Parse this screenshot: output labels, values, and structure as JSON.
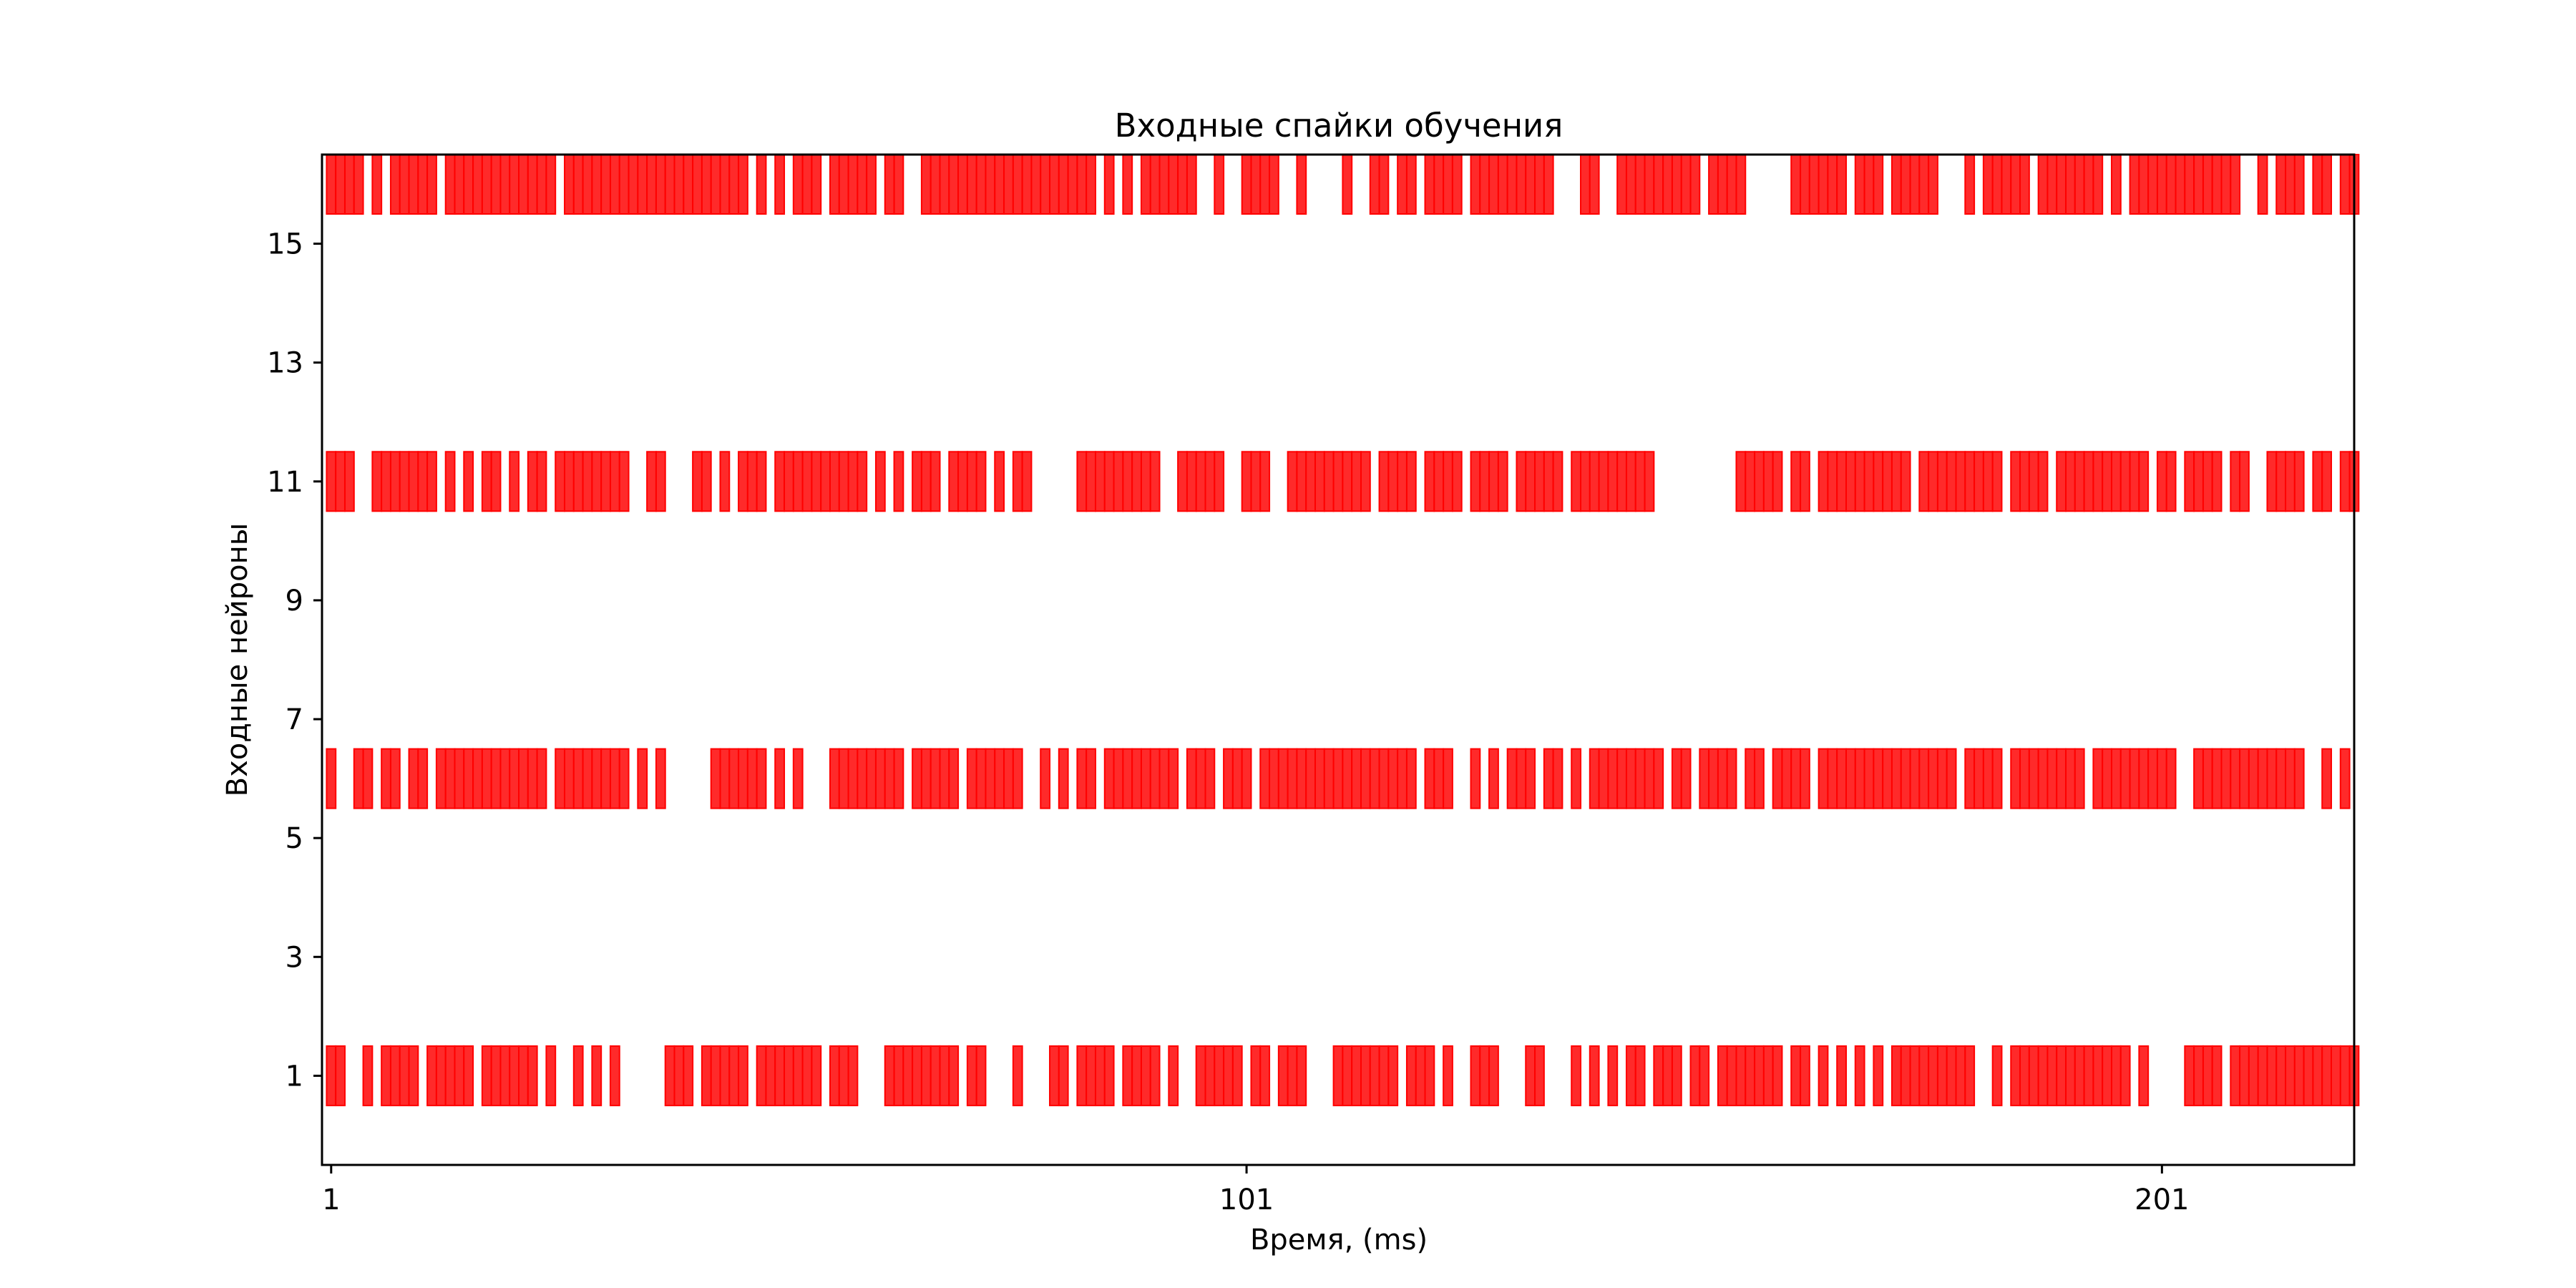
{
  "chart_data": {
    "type": "raster",
    "title": "Входные спайки обучения",
    "xlabel": "Время, (ms)",
    "ylabel": "Входные нейроны",
    "xticks": [
      1,
      101,
      201
    ],
    "xtick_labels": [
      "1",
      "101",
      "201"
    ],
    "yticks": [
      1,
      3,
      5,
      7,
      9,
      11,
      13,
      15
    ],
    "ytick_labels": [
      "1",
      "3",
      "5",
      "7",
      "9",
      "11",
      "13",
      "15"
    ],
    "xlim": [
      0,
      222
    ],
    "ylim": [
      -0.5,
      16.5
    ],
    "bar_color": "#ff0000",
    "bar_fill": "#ff2a2a",
    "grid": false,
    "series": [
      {
        "y": 1,
        "x": [
          1,
          2,
          5,
          7,
          8,
          9,
          10,
          12,
          13,
          14,
          15,
          16,
          18,
          19,
          20,
          21,
          22,
          23,
          25,
          28,
          30,
          32,
          38,
          39,
          40,
          42,
          43,
          44,
          45,
          46,
          48,
          49,
          50,
          51,
          52,
          53,
          54,
          56,
          57,
          58,
          62,
          63,
          64,
          65,
          66,
          67,
          68,
          69,
          71,
          72,
          76,
          80,
          81,
          83,
          84,
          85,
          86,
          88,
          89,
          90,
          91,
          93,
          96,
          97,
          98,
          99,
          100,
          102,
          103,
          105,
          106,
          107,
          111,
          112,
          113,
          114,
          115,
          116,
          117,
          119,
          120,
          121,
          123,
          126,
          127,
          128,
          132,
          133,
          137,
          139,
          141,
          143,
          144,
          146,
          147,
          148,
          150,
          151,
          153,
          154,
          155,
          156,
          157,
          158,
          159,
          161,
          162,
          164,
          166,
          168,
          170,
          172,
          173,
          174,
          175,
          176,
          177,
          178,
          179,
          180,
          183,
          185,
          186,
          187,
          188,
          189,
          190,
          191,
          192,
          193,
          194,
          195,
          196,
          197,
          199,
          204,
          205,
          206,
          207,
          209,
          210,
          211,
          212,
          213,
          214,
          215,
          216,
          217,
          218,
          219,
          220,
          221,
          222
        ]
      },
      {
        "y": 6,
        "x": [
          1,
          4,
          5,
          7,
          8,
          10,
          11,
          13,
          14,
          15,
          16,
          17,
          18,
          19,
          20,
          21,
          22,
          23,
          24,
          26,
          27,
          28,
          29,
          30,
          31,
          32,
          33,
          35,
          37,
          43,
          44,
          45,
          46,
          47,
          48,
          50,
          52,
          56,
          57,
          58,
          59,
          60,
          61,
          62,
          63,
          65,
          66,
          67,
          68,
          69,
          71,
          72,
          73,
          74,
          75,
          76,
          79,
          81,
          83,
          84,
          86,
          87,
          88,
          89,
          90,
          91,
          92,
          93,
          95,
          96,
          97,
          99,
          100,
          101,
          103,
          104,
          105,
          106,
          107,
          108,
          109,
          110,
          111,
          112,
          113,
          114,
          115,
          116,
          117,
          118,
          119,
          121,
          122,
          123,
          126,
          128,
          130,
          131,
          132,
          134,
          135,
          137,
          139,
          140,
          141,
          142,
          143,
          144,
          145,
          146,
          148,
          149,
          151,
          152,
          153,
          154,
          156,
          157,
          159,
          160,
          161,
          162,
          164,
          165,
          166,
          167,
          168,
          169,
          170,
          171,
          172,
          173,
          174,
          175,
          176,
          177,
          178,
          180,
          181,
          182,
          183,
          185,
          186,
          187,
          188,
          189,
          190,
          191,
          192,
          194,
          195,
          196,
          197,
          198,
          199,
          200,
          201,
          202,
          205,
          206,
          207,
          208,
          209,
          210,
          211,
          212,
          213,
          214,
          215,
          216,
          219,
          221
        ]
      },
      {
        "y": 11,
        "x": [
          1,
          2,
          3,
          6,
          7,
          8,
          9,
          10,
          11,
          12,
          14,
          16,
          18,
          19,
          21,
          23,
          24,
          26,
          27,
          28,
          29,
          30,
          31,
          32,
          33,
          36,
          37,
          41,
          42,
          44,
          46,
          47,
          48,
          50,
          51,
          52,
          53,
          54,
          55,
          56,
          57,
          58,
          59,
          61,
          63,
          65,
          66,
          67,
          69,
          70,
          71,
          72,
          74,
          76,
          77,
          83,
          84,
          85,
          86,
          87,
          88,
          89,
          90,
          91,
          94,
          95,
          96,
          97,
          98,
          101,
          102,
          103,
          106,
          107,
          108,
          109,
          110,
          111,
          112,
          113,
          114,
          116,
          117,
          118,
          119,
          121,
          122,
          123,
          124,
          126,
          127,
          128,
          129,
          131,
          132,
          133,
          134,
          135,
          137,
          138,
          139,
          140,
          141,
          142,
          143,
          144,
          145,
          155,
          156,
          157,
          158,
          159,
          161,
          162,
          164,
          165,
          166,
          167,
          168,
          169,
          170,
          171,
          172,
          173,
          175,
          176,
          177,
          178,
          179,
          180,
          181,
          182,
          183,
          185,
          186,
          187,
          188,
          190,
          191,
          192,
          193,
          194,
          195,
          196,
          197,
          198,
          199,
          201,
          202,
          204,
          205,
          206,
          207,
          209,
          210,
          213,
          214,
          215,
          216,
          218,
          219,
          221,
          222
        ]
      },
      {
        "y": 16,
        "x": [
          1,
          2,
          3,
          4,
          6,
          8,
          9,
          10,
          11,
          12,
          14,
          15,
          16,
          17,
          18,
          19,
          20,
          21,
          22,
          23,
          24,
          25,
          27,
          28,
          29,
          30,
          31,
          32,
          33,
          34,
          35,
          36,
          37,
          38,
          39,
          40,
          41,
          42,
          43,
          44,
          45,
          46,
          48,
          50,
          52,
          53,
          54,
          56,
          57,
          58,
          59,
          60,
          62,
          63,
          66,
          67,
          68,
          69,
          70,
          71,
          72,
          73,
          74,
          75,
          76,
          77,
          78,
          79,
          80,
          81,
          82,
          83,
          84,
          86,
          88,
          90,
          91,
          92,
          93,
          94,
          95,
          98,
          101,
          102,
          103,
          104,
          107,
          112,
          115,
          116,
          118,
          119,
          121,
          122,
          123,
          124,
          126,
          127,
          128,
          129,
          130,
          131,
          132,
          133,
          134,
          138,
          139,
          142,
          143,
          144,
          145,
          146,
          147,
          148,
          149,
          150,
          152,
          153,
          154,
          155,
          161,
          162,
          163,
          164,
          165,
          166,
          168,
          169,
          170,
          172,
          173,
          174,
          175,
          176,
          180,
          182,
          183,
          184,
          185,
          186,
          188,
          189,
          190,
          191,
          192,
          193,
          194,
          196,
          198,
          199,
          200,
          201,
          202,
          203,
          204,
          205,
          206,
          207,
          208,
          209,
          212,
          214,
          215,
          216,
          218,
          219,
          221,
          222
        ]
      }
    ]
  }
}
